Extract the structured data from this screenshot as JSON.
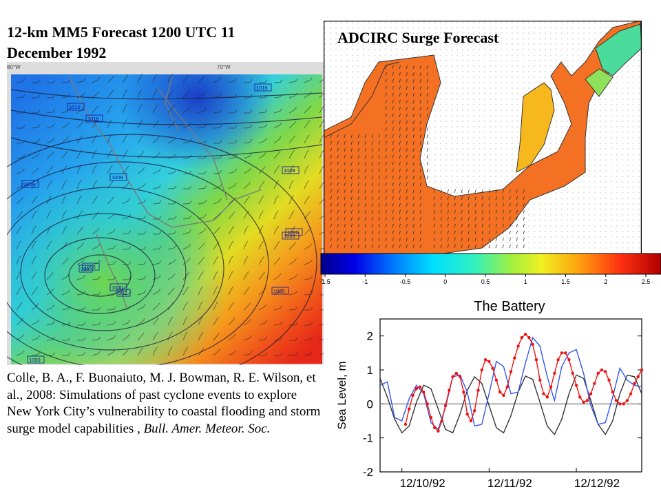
{
  "mm5": {
    "title_line1": "12-km MM5 Forecast 1200 UTC 11",
    "title_line2": "December 1992",
    "lon_label_80w": "80°W",
    "lon_label_70w": "70°W",
    "pressure_labels": [
      "1016",
      "1016",
      "1008",
      "1008",
      "1008",
      "1000",
      "1000",
      "1000",
      "1008",
      "1016",
      "1000",
      "992",
      "990",
      "1002"
    ]
  },
  "adcirc": {
    "title": "ADCIRC Surge Forecast"
  },
  "colorbar": {
    "ticks": [
      "-1.5",
      "-1",
      "-0.5",
      "0",
      "0.5",
      "1",
      "1.5",
      "2",
      "2.5"
    ]
  },
  "citation": {
    "text": "Colle, B. A., F. Buonaiuto, M. J. Bowman, R. E. Wilson, et al., 2008: Simulations of past cyclone events to explore New York City’s vulnerability to coastal flooding and storm surge model capabilities , ",
    "journal": "Bull. Amer. Meteor. Soc."
  },
  "chart_data": {
    "type": "line",
    "title": "The Battery",
    "xlabel": "",
    "ylabel": "Sea Level, m",
    "xlim": [
      0,
      72
    ],
    "ylim": [
      -2,
      2.5
    ],
    "xticks": [
      6,
      30,
      54
    ],
    "xtick_labels": [
      "12/10/92",
      "12/11/92",
      "12/12/92"
    ],
    "yticks": [
      -2,
      -1,
      0,
      1,
      2
    ],
    "grid": false,
    "zero_line": true,
    "series": [
      {
        "color": "#333333",
        "markers": false,
        "x": [
          0,
          2,
          4,
          6,
          8,
          10,
          12,
          14,
          16,
          18,
          20,
          22,
          24,
          26,
          28,
          30,
          32,
          34,
          36,
          38,
          40,
          42,
          44,
          46,
          48,
          50,
          52,
          54,
          56,
          58,
          60,
          62,
          64,
          66,
          68,
          70,
          72
        ],
        "y": [
          0.75,
          0.2,
          -0.45,
          -0.85,
          -0.65,
          0.05,
          0.55,
          0.45,
          -0.15,
          -0.75,
          -0.85,
          -0.3,
          0.4,
          0.8,
          0.6,
          -0.05,
          -0.7,
          -0.85,
          -0.35,
          0.35,
          0.82,
          0.72,
          0.05,
          -0.65,
          -0.9,
          -0.45,
          0.3,
          0.85,
          0.75,
          0.1,
          -0.6,
          -0.9,
          -0.5,
          0.3,
          0.85,
          0.8,
          0.3
        ]
      },
      {
        "color": "#3355ee",
        "markers": false,
        "x": [
          0,
          2,
          4,
          6,
          8,
          10,
          12,
          14,
          16,
          18,
          20,
          22,
          24,
          26,
          28,
          30,
          32,
          34,
          36,
          38,
          40,
          42,
          44,
          46,
          48,
          50,
          52,
          54,
          56,
          58,
          60,
          62,
          64,
          66,
          68,
          70,
          72
        ],
        "y": [
          0.55,
          0.65,
          -0.4,
          -0.5,
          0.15,
          0.55,
          0.3,
          -0.55,
          -0.75,
          -0.1,
          0.8,
          0.85,
          0.35,
          -0.65,
          -0.6,
          0.3,
          1.25,
          1.1,
          0.3,
          0.35,
          1.2,
          1.95,
          1.7,
          0.8,
          0.1,
          1.1,
          1.5,
          1.6,
          0.9,
          -0.05,
          -0.6,
          -0.55,
          0.2,
          1.05,
          0.7,
          0.55,
          0.5
        ]
      },
      {
        "color": "#ee1111",
        "markers": true,
        "x": [
          7,
          8,
          9,
          10,
          11,
          12,
          13,
          14,
          15,
          16,
          17,
          18,
          19,
          20,
          21,
          22,
          23,
          24,
          25,
          26,
          27,
          28,
          29,
          30,
          31,
          32,
          33,
          34,
          35,
          36,
          37,
          38,
          39,
          40,
          41,
          42,
          43,
          44,
          45,
          46,
          47,
          48,
          49,
          50,
          51,
          52,
          53,
          54,
          55,
          56,
          57,
          58,
          59,
          60,
          61,
          62,
          63,
          64,
          65,
          66,
          67,
          68,
          69,
          70,
          71,
          72
        ],
        "y": [
          -0.6,
          -0.15,
          0.25,
          0.45,
          0.5,
          0.35,
          0.0,
          -0.4,
          -0.7,
          -0.8,
          -0.5,
          -0.05,
          0.4,
          0.8,
          0.9,
          0.8,
          0.35,
          -0.3,
          -0.5,
          -0.2,
          0.4,
          1.0,
          1.3,
          1.25,
          1.05,
          0.7,
          0.35,
          0.25,
          0.5,
          0.95,
          1.35,
          1.7,
          1.95,
          2.05,
          1.95,
          1.75,
          1.3,
          0.7,
          0.3,
          0.2,
          0.5,
          0.9,
          1.3,
          1.5,
          1.5,
          1.3,
          0.9,
          0.55,
          0.2,
          0.05,
          0.1,
          0.3,
          0.6,
          0.9,
          1.0,
          0.95,
          0.7,
          0.35,
          0.1,
          0.0,
          0.0,
          0.1,
          0.3,
          0.6,
          0.8,
          1.0
        ]
      }
    ]
  }
}
